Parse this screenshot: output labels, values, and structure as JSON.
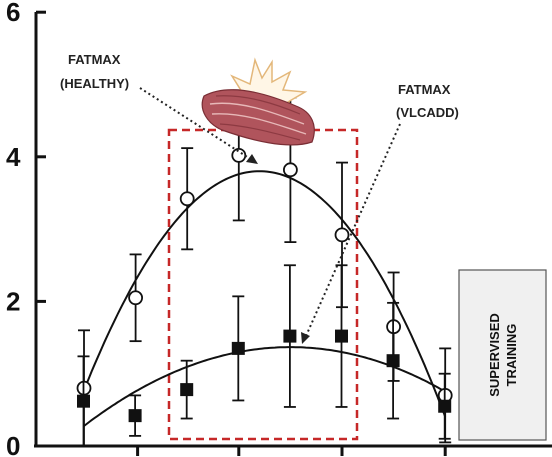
{
  "chart_data": {
    "type": "scatter",
    "title": "",
    "xlabel": "",
    "ylabel": "",
    "x": [
      1,
      2,
      3,
      4,
      5,
      6,
      7,
      8
    ],
    "ylim": [
      0,
      6
    ],
    "yticks": [
      "0",
      "2",
      "4",
      "6"
    ],
    "grid": false,
    "series": [
      {
        "marker": "open-circle",
        "values": [
          0.8,
          2.05,
          3.42,
          4.02,
          3.82,
          2.92,
          1.65,
          0.7
        ],
        "error": [
          0.8,
          0.6,
          0.7,
          0.9,
          1.0,
          1.0,
          0.75,
          0.65
        ],
        "fit": "quadratic"
      },
      {
        "marker": "filled-square",
        "values": [
          0.62,
          0.42,
          0.78,
          1.35,
          1.52,
          1.52,
          1.18,
          0.55
        ],
        "error": [
          0.62,
          0.28,
          0.4,
          0.72,
          0.98,
          0.98,
          0.8,
          0.45
        ],
        "fit": "quadratic"
      }
    ],
    "annotations": [
      {
        "text": [
          "FATMAX",
          "(HEALTHY)"
        ]
      },
      {
        "text": [
          "FATMAX",
          "(VLCADD)"
        ]
      },
      {
        "text": [
          "SUPERVISED",
          "TRAINING"
        ]
      }
    ]
  },
  "colors": {
    "axis": "#111111",
    "markers": "#111111",
    "highlight_box": "#c62828",
    "training_box_fill": "#f0f0f0",
    "muscle": "#b0545c"
  },
  "icons": {
    "muscle_illustration": "muscle-fiber-icon",
    "pain_burst": "burst-icon"
  }
}
